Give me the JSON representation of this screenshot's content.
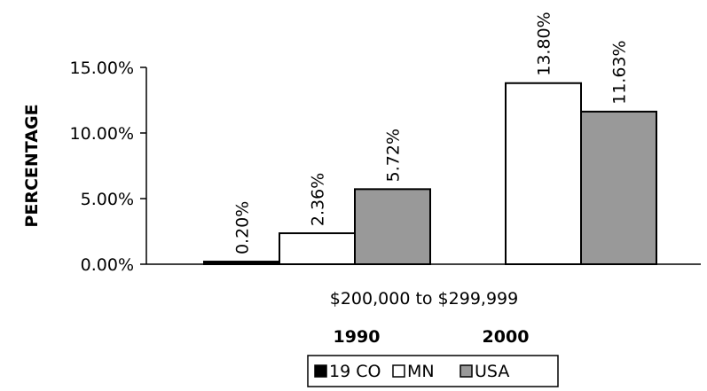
{
  "chart_data": {
    "type": "bar",
    "categories": [
      "1990",
      "2000"
    ],
    "series": [
      {
        "name": "19 CO",
        "color": "#000000",
        "values": [
          0.2,
          null
        ]
      },
      {
        "name": "MN",
        "color": "#ffffff",
        "values": [
          2.36,
          13.8
        ]
      },
      {
        "name": "USA",
        "color": "#999999",
        "values": [
          5.72,
          11.63
        ]
      }
    ],
    "data_labels": [
      [
        "0.20%",
        null
      ],
      [
        "2.36%",
        "13.80%"
      ],
      [
        "5.72%",
        "11.63%"
      ]
    ],
    "xlabel": "$200,000 to $299,999",
    "ylabel": "PERCENTAGE",
    "ylim": [
      0,
      15
    ],
    "yticks": [
      0,
      5,
      10,
      15
    ],
    "ytick_labels": [
      "0.00%",
      "5.00%",
      "10.00%",
      "15.00%"
    ],
    "grid": false,
    "legend_position": "bottom"
  }
}
